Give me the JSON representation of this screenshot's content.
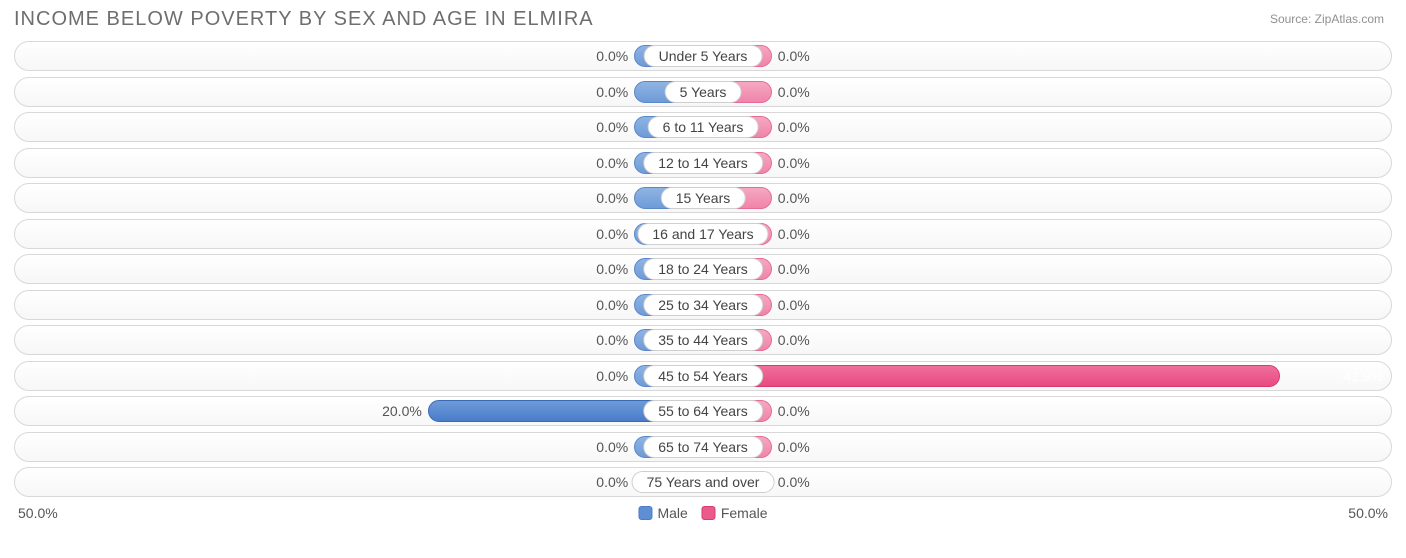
{
  "title": "INCOME BELOW POVERTY BY SEX AND AGE IN ELMIRA",
  "source": "Source: ZipAtlas.com",
  "chart": {
    "type": "diverging-bar",
    "axis_max_pct": 50.0,
    "axis_left_label": "50.0%",
    "axis_right_label": "50.0%",
    "min_bar_pct": 5.0,
    "colors": {
      "male_bar": "#6e9bd8",
      "male_bar_hi": "#4a7cc9",
      "female_bar": "#f084aa",
      "female_bar_hi": "#e84a81",
      "row_border": "#d8d8d8",
      "text": "#555555",
      "title": "#6e6e6e",
      "background": "#ffffff"
    },
    "legend": {
      "male": "Male",
      "female": "Female"
    },
    "rows": [
      {
        "label": "Under 5 Years",
        "male_pct": 0.0,
        "male_text": "0.0%",
        "female_pct": 0.0,
        "female_text": "0.0%"
      },
      {
        "label": "5 Years",
        "male_pct": 0.0,
        "male_text": "0.0%",
        "female_pct": 0.0,
        "female_text": "0.0%"
      },
      {
        "label": "6 to 11 Years",
        "male_pct": 0.0,
        "male_text": "0.0%",
        "female_pct": 0.0,
        "female_text": "0.0%"
      },
      {
        "label": "12 to 14 Years",
        "male_pct": 0.0,
        "male_text": "0.0%",
        "female_pct": 0.0,
        "female_text": "0.0%"
      },
      {
        "label": "15 Years",
        "male_pct": 0.0,
        "male_text": "0.0%",
        "female_pct": 0.0,
        "female_text": "0.0%"
      },
      {
        "label": "16 and 17 Years",
        "male_pct": 0.0,
        "male_text": "0.0%",
        "female_pct": 0.0,
        "female_text": "0.0%"
      },
      {
        "label": "18 to 24 Years",
        "male_pct": 0.0,
        "male_text": "0.0%",
        "female_pct": 0.0,
        "female_text": "0.0%"
      },
      {
        "label": "25 to 34 Years",
        "male_pct": 0.0,
        "male_text": "0.0%",
        "female_pct": 0.0,
        "female_text": "0.0%"
      },
      {
        "label": "35 to 44 Years",
        "male_pct": 0.0,
        "male_text": "0.0%",
        "female_pct": 0.0,
        "female_text": "0.0%"
      },
      {
        "label": "45 to 54 Years",
        "male_pct": 0.0,
        "male_text": "0.0%",
        "female_pct": 41.9,
        "female_text": "41.9%"
      },
      {
        "label": "55 to 64 Years",
        "male_pct": 20.0,
        "male_text": "20.0%",
        "female_pct": 0.0,
        "female_text": "0.0%"
      },
      {
        "label": "65 to 74 Years",
        "male_pct": 0.0,
        "male_text": "0.0%",
        "female_pct": 0.0,
        "female_text": "0.0%"
      },
      {
        "label": "75 Years and over",
        "male_pct": 0.0,
        "male_text": "0.0%",
        "female_pct": 0.0,
        "female_text": "0.0%"
      }
    ]
  }
}
